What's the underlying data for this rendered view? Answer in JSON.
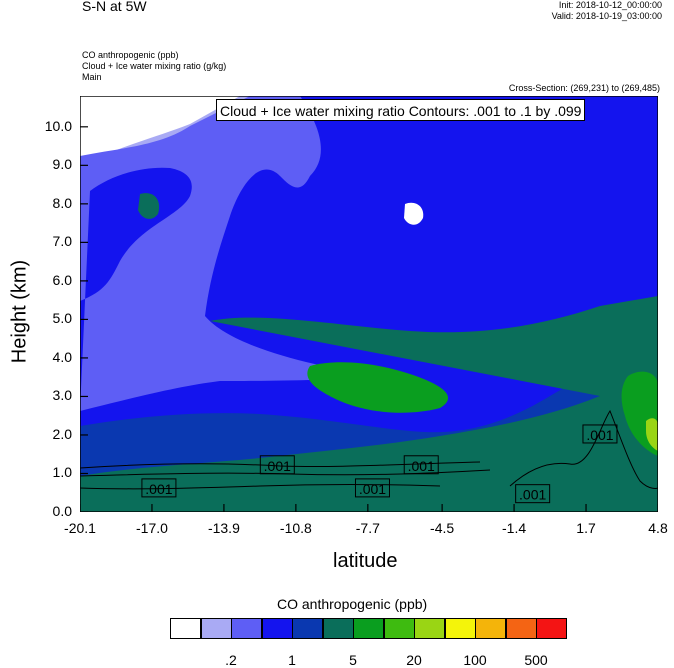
{
  "header": {
    "title": "S-N at 5W",
    "init": "Init: 2018-10-12_00:00:00",
    "valid": "Valid: 2018-10-19_03:00:00",
    "field1": "CO anthropogenic   (ppb)",
    "field2": "Cloud + Ice water mixing ratio   (g/kg)",
    "field3": "Main",
    "cross_section": "Cross-Section: (269,231) to (269,485)"
  },
  "chart_data": {
    "type": "heatmap",
    "title": "",
    "xlabel": "latitude",
    "ylabel": "Height (km)",
    "xlim": [
      -20.1,
      4.8
    ],
    "ylim": [
      0.0,
      10.8
    ],
    "x_ticks": [
      "-20.1",
      "-17.0",
      "-13.9",
      "-10.8",
      "-7.7",
      "-4.5",
      "-1.4",
      "1.7",
      "4.8"
    ],
    "y_ticks": [
      "0.0",
      "1.0",
      "2.0",
      "3.0",
      "4.0",
      "5.0",
      "6.0",
      "7.0",
      "8.0",
      "9.0",
      "10.0"
    ],
    "contour_title": "Cloud + Ice water mixing ratio Contours: .001 to .1 by .099",
    "contour_labels": [
      {
        "text": ".001",
        "x": -11.6,
        "y": 1.2
      },
      {
        "text": ".001",
        "x": -5.4,
        "y": 1.2
      },
      {
        "text": ".001",
        "x": -16.7,
        "y": 0.6
      },
      {
        "text": ".001",
        "x": -7.5,
        "y": 0.6
      },
      {
        "text": ".001",
        "x": -0.6,
        "y": 0.45
      },
      {
        "text": ".001",
        "x": 2.3,
        "y": 2.0
      }
    ],
    "colorbar": {
      "title": "CO anthropogenic  (ppb)",
      "colors": [
        "#ffffff",
        "#a9aaf4",
        "#5e5ef5",
        "#1414ee",
        "#0a38b0",
        "#0a6e5a",
        "#0a9e1f",
        "#3ebb10",
        "#9ad514",
        "#f4f40a",
        "#f4b40a",
        "#f46414",
        "#f41414"
      ],
      "labels": [
        ".2",
        "1",
        "5",
        "20",
        "100",
        "500"
      ]
    }
  }
}
